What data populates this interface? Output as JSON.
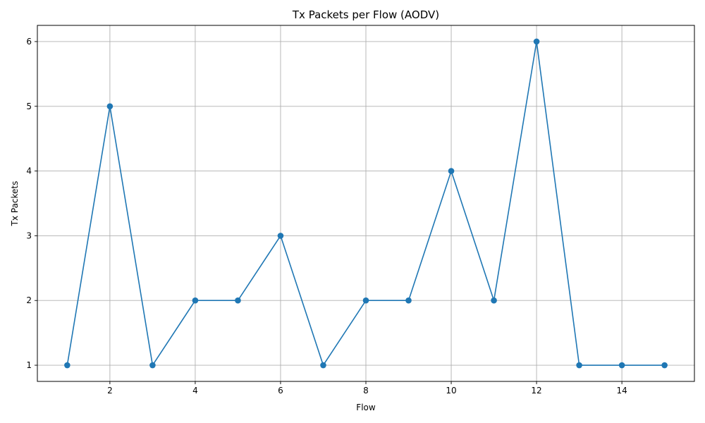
{
  "chart_data": {
    "type": "line",
    "title": "Tx Packets per Flow (AODV)",
    "xlabel": "Flow",
    "ylabel": "Tx Packets",
    "x": [
      1,
      2,
      3,
      4,
      5,
      6,
      7,
      8,
      9,
      10,
      11,
      12,
      13,
      14,
      15
    ],
    "series": [
      {
        "values": [
          1,
          5,
          1,
          2,
          2,
          3,
          1,
          2,
          2,
          4,
          2,
          6,
          1,
          1,
          1
        ],
        "color": "#1f77b4",
        "marker": "circle"
      }
    ],
    "xlim": [
      0.3,
      15.7
    ],
    "ylim": [
      0.75,
      6.25
    ],
    "xticks": [
      "2",
      "4",
      "6",
      "8",
      "10",
      "12",
      "14"
    ],
    "yticks": [
      "1",
      "2",
      "3",
      "4",
      "5",
      "6"
    ],
    "grid": true,
    "legend": "none"
  }
}
